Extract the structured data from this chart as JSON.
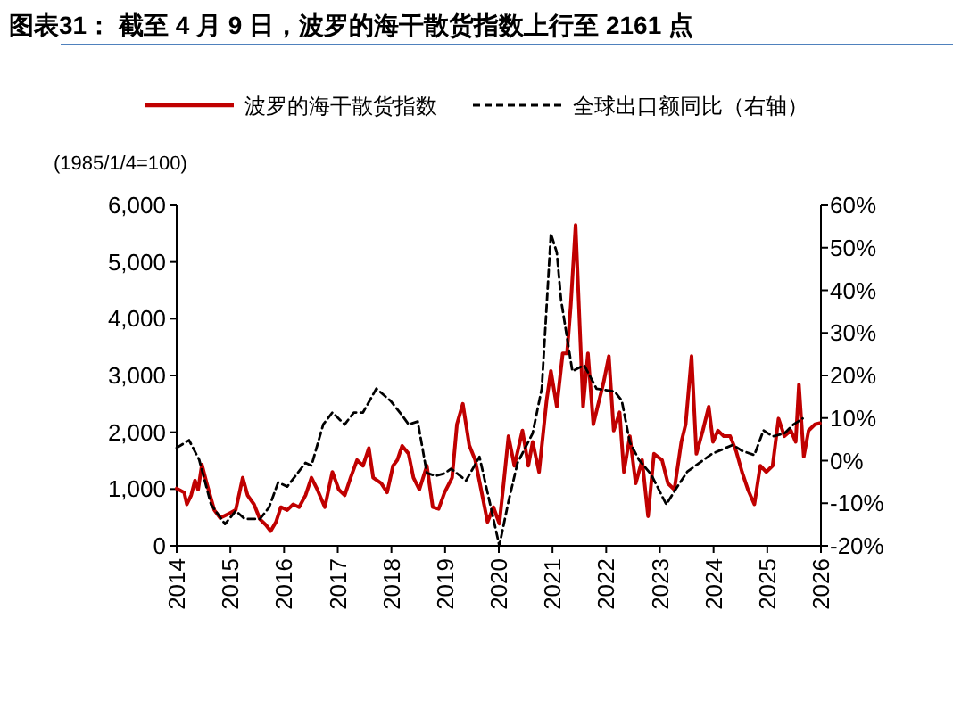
{
  "chart_data": {
    "type": "line",
    "title": "图表31： 截至 4 月 9 日，波罗的海干散货指数上行至 2161 点",
    "ylabel": "(1985/1/4=100)",
    "legend": "top",
    "grid": false,
    "xlim": [
      2014,
      2026
    ],
    "xticks": [
      2014,
      2015,
      2016,
      2017,
      2018,
      2019,
      2020,
      2021,
      2022,
      2023,
      2024,
      2025,
      2026
    ],
    "ylim": [
      0,
      6000
    ],
    "yticks": [
      {
        "value": 0,
        "label": "0"
      },
      {
        "value": 1000,
        "label": "1,000"
      },
      {
        "value": 2000,
        "label": "2,000"
      },
      {
        "value": 3000,
        "label": "3,000"
      },
      {
        "value": 4000,
        "label": "4,000"
      },
      {
        "value": 5000,
        "label": "5,000"
      },
      {
        "value": 6000,
        "label": "6,000"
      }
    ],
    "y2lim": [
      -20,
      60
    ],
    "y2ticks": [
      {
        "value": -20,
        "label": "-20%"
      },
      {
        "value": -10,
        "label": "-10%"
      },
      {
        "value": 0,
        "label": "0%"
      },
      {
        "value": 10,
        "label": "10%"
      },
      {
        "value": 20,
        "label": "20%"
      },
      {
        "value": 30,
        "label": "30%"
      },
      {
        "value": 40,
        "label": "40%"
      },
      {
        "value": 50,
        "label": "50%"
      },
      {
        "value": 60,
        "label": "60%"
      }
    ],
    "series": [
      {
        "name": "波罗的海干散货指数",
        "color": "#c00000",
        "line_style": "solid",
        "x": [
          2014.0,
          2014.14,
          2014.19,
          2014.27,
          2014.34,
          2014.4,
          2014.47,
          2014.56,
          2014.7,
          2014.81,
          2014.98,
          2015.1,
          2015.23,
          2015.32,
          2015.44,
          2015.55,
          2015.66,
          2015.75,
          2015.85,
          2015.94,
          2016.06,
          2016.17,
          2016.28,
          2016.4,
          2016.51,
          2016.62,
          2016.76,
          2016.9,
          2017.02,
          2017.13,
          2017.24,
          2017.36,
          2017.47,
          2017.58,
          2017.66,
          2017.81,
          2017.92,
          2018.03,
          2018.11,
          2018.2,
          2018.32,
          2018.41,
          2018.52,
          2018.66,
          2018.77,
          2018.88,
          2018.99,
          2019.13,
          2019.22,
          2019.33,
          2019.45,
          2019.56,
          2019.67,
          2019.79,
          2019.9,
          2020.01,
          2020.09,
          2020.18,
          2020.29,
          2020.44,
          2020.55,
          2020.63,
          2020.75,
          2020.89,
          2020.97,
          2021.08,
          2021.19,
          2021.27,
          2021.34,
          2021.43,
          2021.51,
          2021.57,
          2021.66,
          2021.76,
          2021.84,
          2021.95,
          2022.05,
          2022.14,
          2022.25,
          2022.33,
          2022.44,
          2022.55,
          2022.67,
          2022.78,
          2022.89,
          2023.04,
          2023.15,
          2023.27,
          2023.4,
          2023.48,
          2023.59,
          2023.68,
          2023.8,
          2023.91,
          2023.99,
          2024.08,
          2024.19,
          2024.31,
          2024.42,
          2024.53,
          2024.64,
          2024.76,
          2024.87,
          2024.98,
          2025.1,
          2025.21,
          2025.32,
          2025.44,
          2025.53,
          2025.59,
          2025.68,
          2025.77,
          2025.89,
          2025.98
        ],
        "values": [
          1010,
          940,
          730,
          890,
          1150,
          990,
          1430,
          1100,
          630,
          490,
          570,
          630,
          1200,
          890,
          730,
          470,
          370,
          260,
          420,
          680,
          630,
          730,
          680,
          890,
          1200,
          990,
          680,
          1300,
          990,
          890,
          1200,
          1510,
          1410,
          1720,
          1200,
          1100,
          940,
          1410,
          1510,
          1760,
          1620,
          1200,
          990,
          1410,
          680,
          650,
          940,
          1200,
          2140,
          2500,
          1770,
          1510,
          990,
          420,
          680,
          390,
          1100,
          1930,
          1410,
          2030,
          1410,
          1830,
          1300,
          2560,
          3080,
          2450,
          3390,
          3390,
          4230,
          5650,
          3810,
          2450,
          3390,
          2140,
          2450,
          2870,
          3340,
          2030,
          2350,
          1300,
          1930,
          1100,
          1510,
          520,
          1620,
          1510,
          1100,
          990,
          1830,
          2140,
          3340,
          1620,
          2030,
          2450,
          1830,
          2030,
          1930,
          1930,
          1670,
          1300,
          990,
          730,
          1410,
          1300,
          1410,
          2240,
          1930,
          2030,
          1830,
          2840,
          1570,
          2030,
          2140,
          2160
        ]
      },
      {
        "name": "全球出口额同比（右轴）",
        "color": "#000000",
        "line_style": "dashed",
        "axis": "y2",
        "x": [
          2014.0,
          2014.23,
          2014.42,
          2014.64,
          2014.9,
          2015.1,
          2015.27,
          2015.55,
          2015.72,
          2015.89,
          2016.06,
          2016.4,
          2016.51,
          2016.73,
          2016.9,
          2017.13,
          2017.3,
          2017.47,
          2017.72,
          2017.98,
          2018.2,
          2018.32,
          2018.49,
          2018.66,
          2018.82,
          2018.99,
          2019.11,
          2019.39,
          2019.64,
          2019.84,
          2020.01,
          2020.18,
          2020.35,
          2020.63,
          2020.8,
          2020.97,
          2021.08,
          2021.16,
          2021.37,
          2021.59,
          2021.82,
          2022.16,
          2022.29,
          2022.44,
          2022.61,
          2022.84,
          2023.12,
          2023.29,
          2023.51,
          2023.97,
          2024.36,
          2024.53,
          2024.76,
          2024.93,
          2025.1,
          2025.32,
          2025.49,
          2025.66
        ],
        "values": [
          3.0,
          4.8,
          0.2,
          -10.3,
          -14.9,
          -11.8,
          -13.7,
          -13.7,
          -11.0,
          -5.1,
          -6.1,
          -0.5,
          -1.2,
          8.5,
          11.3,
          8.5,
          11.3,
          11.3,
          16.9,
          14.1,
          10.6,
          8.5,
          9.2,
          -2.9,
          -3.6,
          -3.0,
          -1.9,
          -4.7,
          0.9,
          -10.3,
          -20.0,
          -9.6,
          -0.5,
          6.4,
          16.9,
          53.3,
          48.9,
          37.7,
          21.0,
          22.4,
          16.9,
          16.2,
          14.1,
          4.3,
          0.2,
          -3.3,
          -10.3,
          -6.8,
          -2.6,
          1.6,
          3.7,
          2.3,
          1.3,
          7.1,
          5.7,
          6.4,
          8.5,
          9.9
        ]
      }
    ]
  }
}
